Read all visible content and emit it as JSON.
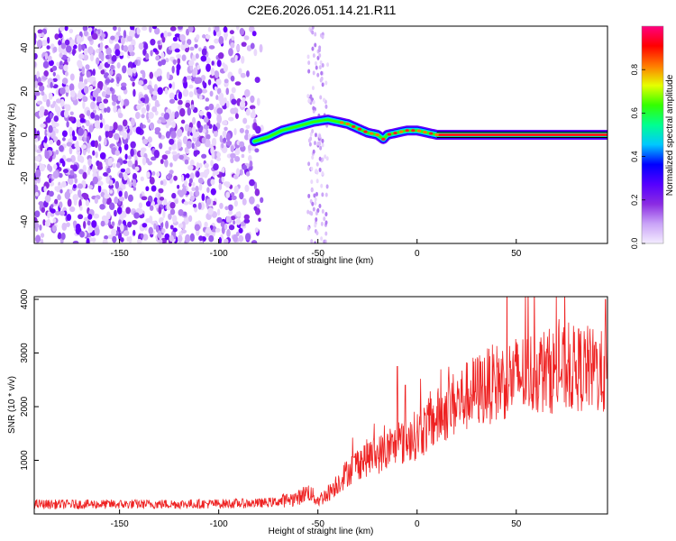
{
  "title": "C2E6.2026.051.14.21.R11",
  "chart_data": [
    {
      "type": "heatmap",
      "panel": "spectrogram",
      "xlabel": "Height of straight line (km)",
      "ylabel": "Frequency (Hz)",
      "xlim": [
        -193,
        96
      ],
      "ylim": [
        -50,
        50
      ],
      "xticks": [
        -150,
        -100,
        -50,
        0,
        50
      ],
      "xtick_labels": [
        "-150",
        "-100",
        "-50",
        "0",
        "50"
      ],
      "yticks": [
        -40,
        -20,
        0,
        20,
        40
      ],
      "ytick_labels": [
        "-40",
        "-20",
        "0",
        "20",
        "40"
      ],
      "noise_region_x": [
        -193,
        -78
      ],
      "noise_column_x": [
        -55,
        -45
      ],
      "signal_ridge": {
        "x": [
          -82,
          -75,
          -68,
          -60,
          -52,
          -45,
          -40,
          -35,
          -30,
          -25,
          -20,
          -17,
          -15,
          -10,
          -5,
          0,
          5,
          10,
          30,
          60,
          96
        ],
        "freq_hz": [
          -3,
          -1,
          2,
          4,
          6,
          7,
          6,
          5,
          3,
          1,
          0,
          -2,
          0,
          1,
          2,
          2,
          1,
          0,
          0,
          0,
          0
        ]
      },
      "colorbar": {
        "label": "Normalized spectral amplitude",
        "range": [
          0,
          1
        ],
        "ticks": [
          0.0,
          0.2,
          0.4,
          0.6,
          0.8
        ],
        "tick_labels": [
          "0.0",
          "0.2",
          "0.4",
          "0.6",
          "0.8"
        ],
        "colormap": [
          "#f4ecff",
          "#c9a3f7",
          "#8a2be2",
          "#5500ff",
          "#0000ff",
          "#00c8ff",
          "#00ff90",
          "#33ff00",
          "#e6ff00",
          "#ff7a00",
          "#ff0000",
          "#ff0080"
        ]
      }
    },
    {
      "type": "line",
      "panel": "snr",
      "xlabel": "Height of straight line (km)",
      "ylabel": "SNR (10 * v/v)",
      "xlim": [
        -193,
        96
      ],
      "ylim": [
        0,
        4050
      ],
      "xticks": [
        -150,
        -100,
        -50,
        0,
        50
      ],
      "xtick_labels": [
        "-150",
        "-100",
        "-50",
        "0",
        "50"
      ],
      "yticks": [
        1000,
        2000,
        3000,
        4000
      ],
      "ytick_labels": [
        "1000",
        "2000",
        "3000",
        "4000"
      ],
      "series": [
        {
          "name": "SNR",
          "color": "#ee2222",
          "trend_x": [
            -193,
            -150,
            -100,
            -80,
            -70,
            -60,
            -55,
            -50,
            -45,
            -40,
            -35,
            -30,
            -25,
            -20,
            -15,
            -10,
            -5,
            0,
            5,
            10,
            15,
            20,
            30,
            40,
            50,
            60,
            70,
            80,
            85,
            90,
            96
          ],
          "trend_y": [
            180,
            180,
            190,
            200,
            230,
            300,
            420,
            250,
            380,
            580,
            780,
            950,
            1050,
            1100,
            1180,
            1280,
            1380,
            1480,
            1620,
            1780,
            1950,
            2080,
            2300,
            2450,
            2560,
            2650,
            2680,
            2700,
            2720,
            2650,
            2600
          ],
          "peaks_x": [
            -10,
            -6,
            90,
            95
          ],
          "peaks_y": [
            2750,
            2400,
            3200,
            4000
          ]
        }
      ]
    }
  ]
}
